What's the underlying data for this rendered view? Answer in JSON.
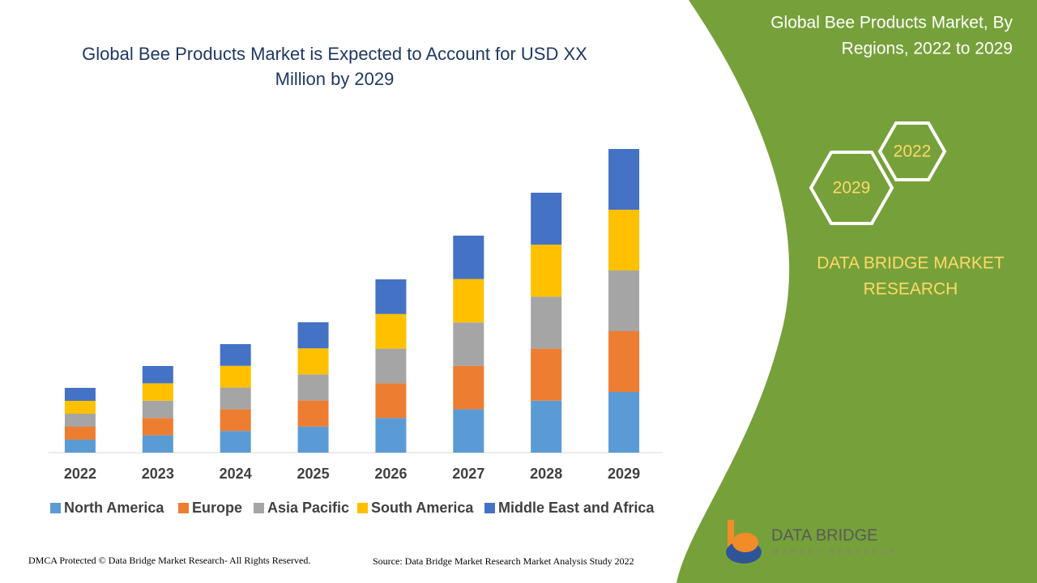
{
  "chart_data": {
    "type": "stacked-bar",
    "title": [
      "Global Bee Products Market is Expected to Account for USD XX",
      "Million by 2029"
    ],
    "categories": [
      "2022",
      "2023",
      "2024",
      "2025",
      "2026",
      "2027",
      "2028",
      "2029"
    ],
    "series": [
      {
        "name": "North America",
        "color": "#5b9bd5",
        "values": [
          16,
          21.4,
          26.8,
          32.2,
          42.8,
          53.6,
          64.2,
          75
        ]
      },
      {
        "name": "Europe",
        "color": "#ed7d31",
        "values": [
          16,
          21.4,
          26.8,
          32.2,
          42.8,
          53.6,
          64.2,
          75
        ]
      },
      {
        "name": "Asia Pacific",
        "color": "#a5a5a5",
        "values": [
          16,
          21.4,
          26.8,
          32.2,
          42.8,
          53.6,
          64.2,
          75
        ]
      },
      {
        "name": "South America",
        "color": "#ffc000",
        "values": [
          16,
          21.4,
          26.8,
          32.2,
          42.8,
          53.6,
          64.2,
          75
        ]
      },
      {
        "name": "Middle East and Africa",
        "color": "#4472c4",
        "values": [
          16,
          21.4,
          26.8,
          32.2,
          42.8,
          53.6,
          64.2,
          75
        ]
      }
    ],
    "legend": "bottom"
  },
  "panel": {
    "title": [
      "Global Bee Products Market, By",
      "Regions, 2022 to 2029"
    ],
    "hexagons": [
      "2022",
      "2029"
    ],
    "brand": [
      "DATA BRIDGE MARKET",
      "RESEARCH"
    ]
  },
  "logo": {
    "name": "DATA BRIDGE",
    "tagline": "MARKET RESEARCH"
  },
  "footer": {
    "copyright": "DMCA Protected © Data Bridge Market Research- All Rights Reserved.",
    "source": "Source: Data Bridge Market Research Market Analysis Study 2022"
  }
}
